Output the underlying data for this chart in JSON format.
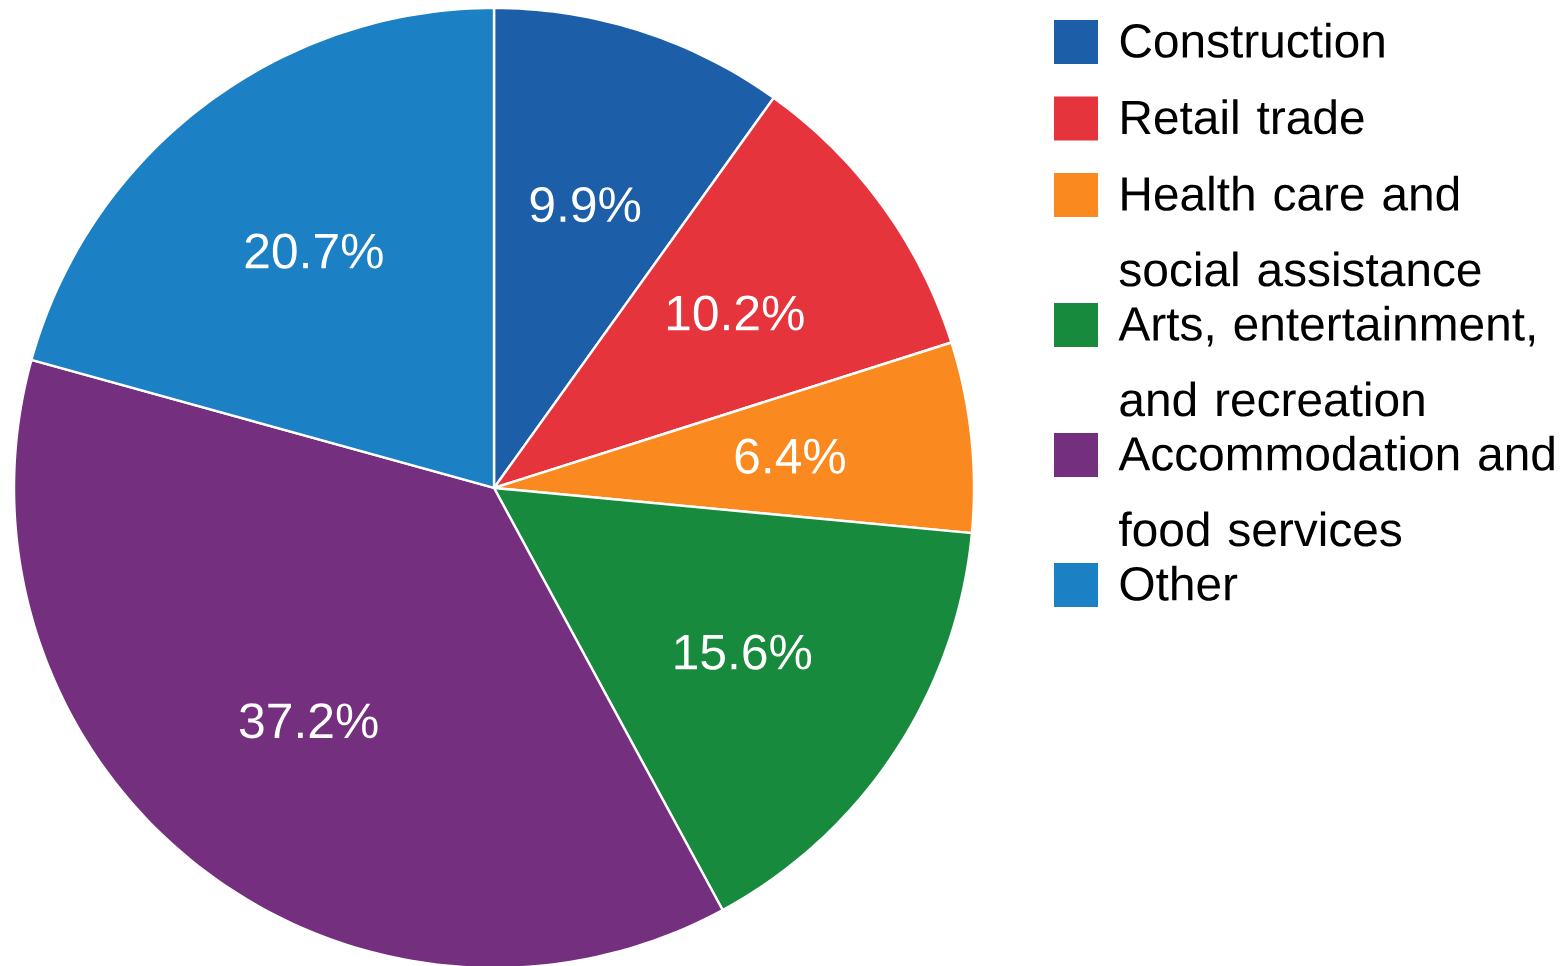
{
  "chart_data": {
    "type": "pie",
    "categories": [
      "Construction",
      "Retail trade",
      "Health care and social assistance",
      "Arts, entertainment, and recreation",
      "Accommodation and food services",
      "Other"
    ],
    "values": [
      9.9,
      10.2,
      6.4,
      15.6,
      37.2,
      20.7
    ],
    "value_labels": [
      "9.9%",
      "10.2%",
      "6.4%",
      "15.6%",
      "37.2%",
      "20.7%"
    ],
    "colors": [
      "#1d5ea8",
      "#e5343c",
      "#fa8a1f",
      "#188a3e",
      "#74307e",
      "#1b80c4"
    ],
    "legend": "right"
  }
}
